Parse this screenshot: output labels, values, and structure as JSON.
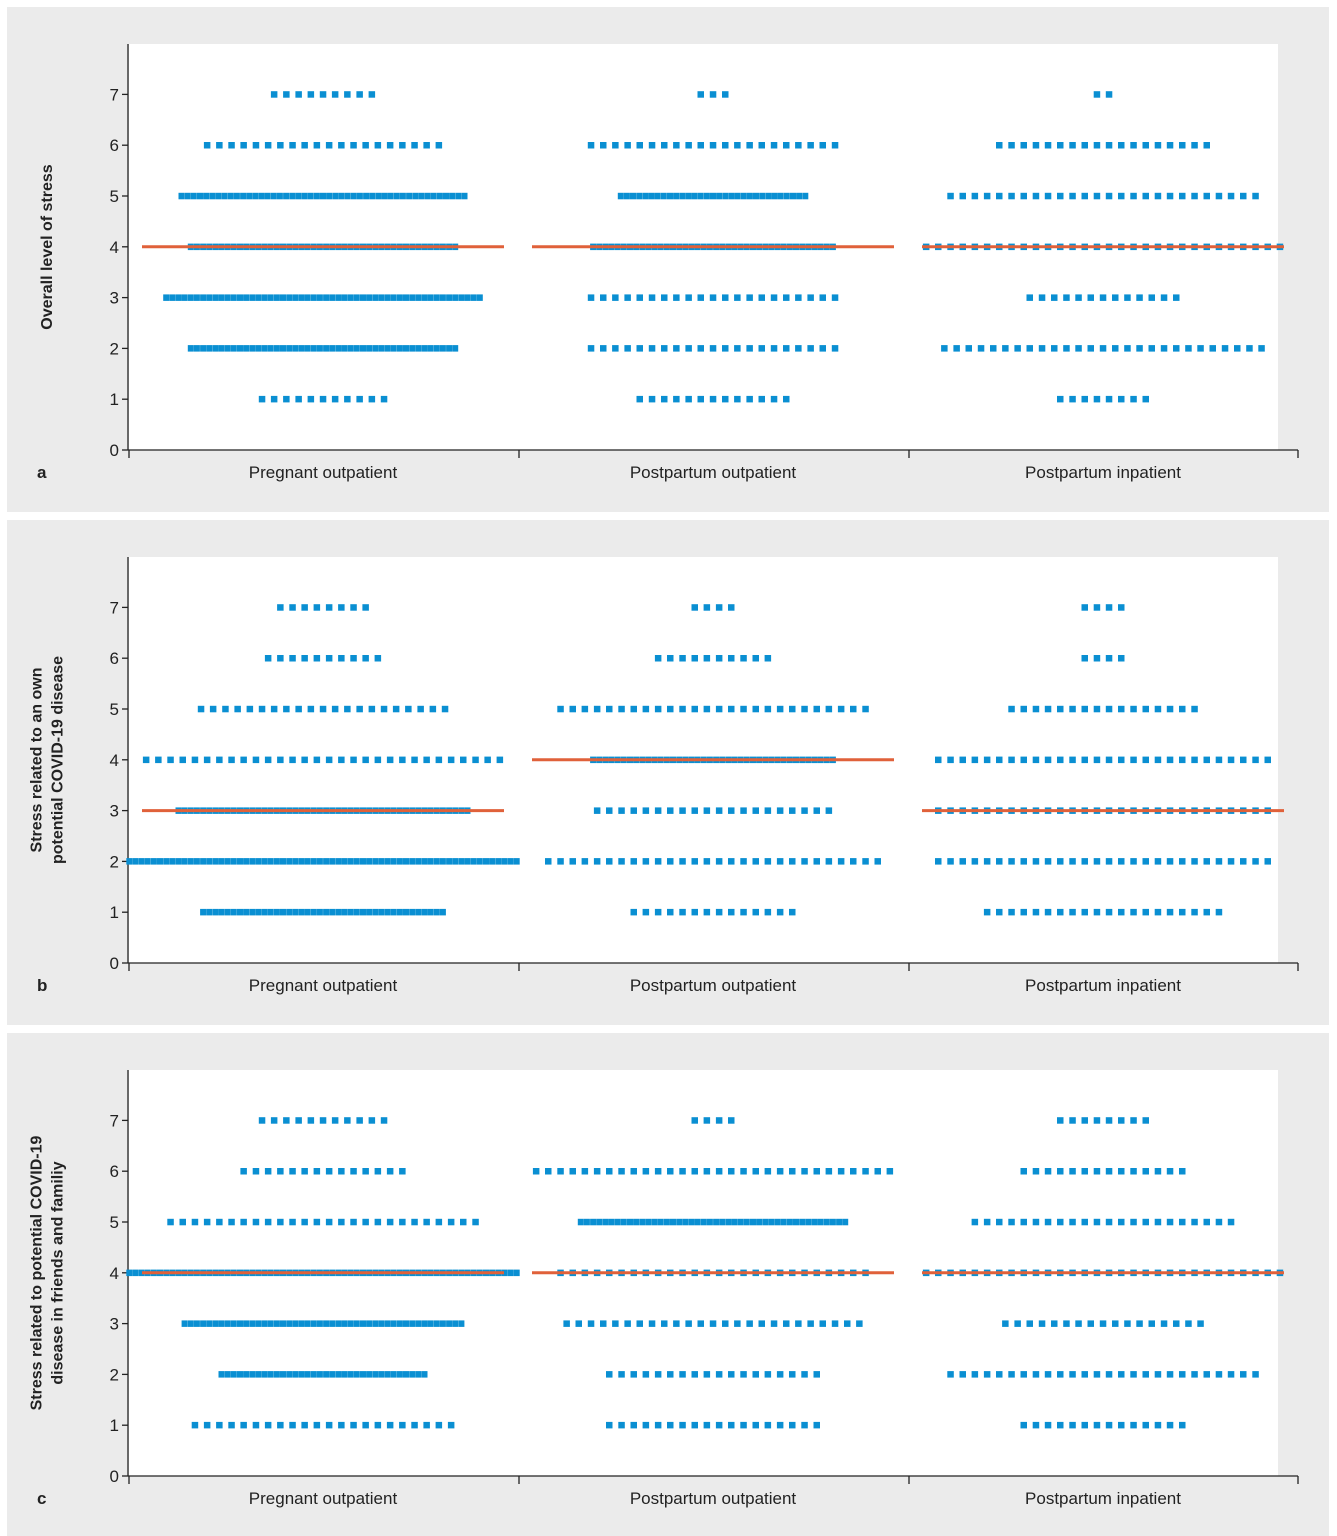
{
  "colors": {
    "dot": "#0a8fd2",
    "median": "#e0613a",
    "panel_bg": "#ebebeb",
    "plot_bg": "#ffffff",
    "axis": "#222222"
  },
  "chart_data": [
    {
      "type": "scatter",
      "subtype": "dot-plot",
      "panel_label": "a",
      "ylabel": "Overall level of stress",
      "categories": [
        "Pregnant outpatient",
        "Postpartum outpatient",
        "Postpartum inpatient"
      ],
      "y_ticks": [
        "0",
        "1",
        "2",
        "3",
        "4",
        "5",
        "6",
        "7"
      ],
      "ylim": [
        0,
        8
      ],
      "grid": false,
      "counts": [
        {
          "1": 11,
          "2": 44,
          "3": 52,
          "4": 44,
          "5": 47,
          "6": 20,
          "7": 9
        },
        {
          "1": 13,
          "2": 21,
          "3": 21,
          "4": 40,
          "5": 31,
          "6": 21,
          "7": 3
        },
        {
          "1": 8,
          "2": 27,
          "3": 13,
          "4": 30,
          "5": 26,
          "6": 18,
          "7": 2
        }
      ],
      "medians": [
        4,
        4,
        4
      ]
    },
    {
      "type": "scatter",
      "subtype": "dot-plot",
      "panel_label": "b",
      "ylabel": [
        "Stress related to an own",
        "potential COVID-19 disease"
      ],
      "categories": [
        "Pregnant outpatient",
        "Postpartum outpatient",
        "Postpartum inpatient"
      ],
      "y_ticks": [
        "0",
        "1",
        "2",
        "3",
        "4",
        "5",
        "6",
        "7"
      ],
      "ylim": [
        0,
        8
      ],
      "grid": false,
      "counts": [
        {
          "1": 40,
          "2": 64,
          "3": 48,
          "4": 30,
          "5": 21,
          "6": 10,
          "7": 8
        },
        {
          "1": 14,
          "2": 28,
          "3": 20,
          "4": 40,
          "5": 26,
          "6": 10,
          "7": 4
        },
        {
          "1": 20,
          "2": 28,
          "3": 28,
          "4": 28,
          "5": 16,
          "6": 4,
          "7": 4
        }
      ],
      "medians": [
        3,
        4,
        3
      ]
    },
    {
      "type": "scatter",
      "subtype": "dot-plot",
      "panel_label": "c",
      "ylabel": [
        "Stress related to potential COVID-19",
        "disease in friends and familiy"
      ],
      "categories": [
        "Pregnant outpatient",
        "Postpartum outpatient",
        "Postpartum inpatient"
      ],
      "y_ticks": [
        "0",
        "1",
        "2",
        "3",
        "4",
        "5",
        "6",
        "7"
      ],
      "ylim": [
        0,
        8
      ],
      "grid": false,
      "counts": [
        {
          "1": 22,
          "2": 34,
          "3": 46,
          "4": 64,
          "5": 26,
          "6": 14,
          "7": 11
        },
        {
          "1": 18,
          "2": 18,
          "3": 25,
          "4": 26,
          "5": 44,
          "6": 30,
          "7": 4
        },
        {
          "1": 14,
          "2": 26,
          "3": 17,
          "4": 30,
          "5": 22,
          "6": 14,
          "7": 8
        }
      ],
      "medians": [
        4,
        4,
        4
      ]
    }
  ]
}
